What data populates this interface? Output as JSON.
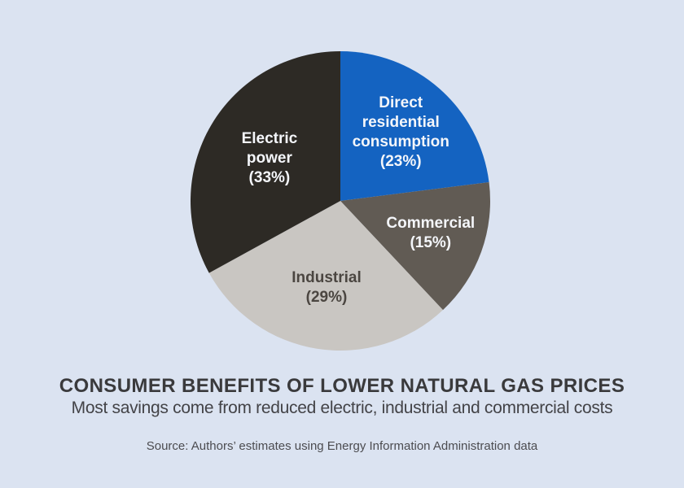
{
  "colors": {
    "background": "#dbe3f1",
    "title_text": "#3a3a3c",
    "subtitle_text": "#434347",
    "source_text": "#4c4c50"
  },
  "chart_data": {
    "type": "pie",
    "title": "CONSUMER BENEFITS OF LOWER NATURAL GAS PRICES",
    "subtitle": "Most savings come from reduced electric, industrial and commercial costs",
    "source": "Source: Authors’ estimates using Energy Information Administration data",
    "start_angle_deg": 0,
    "direction": "clockwise",
    "legend": "none",
    "slices": [
      {
        "label": "Direct residential consumption",
        "value_pct": 23,
        "color": "#1463c1",
        "label_lines": [
          "Direct",
          "residential",
          "consumption",
          "(23%)"
        ],
        "label_color": "#f4f6fa",
        "label_radius_frac": 0.61
      },
      {
        "label": "Commercial",
        "value_pct": 15,
        "color": "#615b54",
        "label_lines": [
          "Commercial",
          "(15%)"
        ],
        "label_color": "#f4f6fa",
        "label_radius_frac": 0.64
      },
      {
        "label": "Industrial",
        "value_pct": 29,
        "color": "#c9c6c2",
        "label_lines": [
          "Industrial",
          "(29%)"
        ],
        "label_color": "#4b4641",
        "label_radius_frac": 0.59
      },
      {
        "label": "Electric power",
        "value_pct": 33,
        "color": "#2d2a25",
        "label_lines": [
          "Electric",
          "power",
          "(33%)"
        ],
        "label_color": "#f4f6fa",
        "label_radius_frac": 0.55
      }
    ]
  }
}
